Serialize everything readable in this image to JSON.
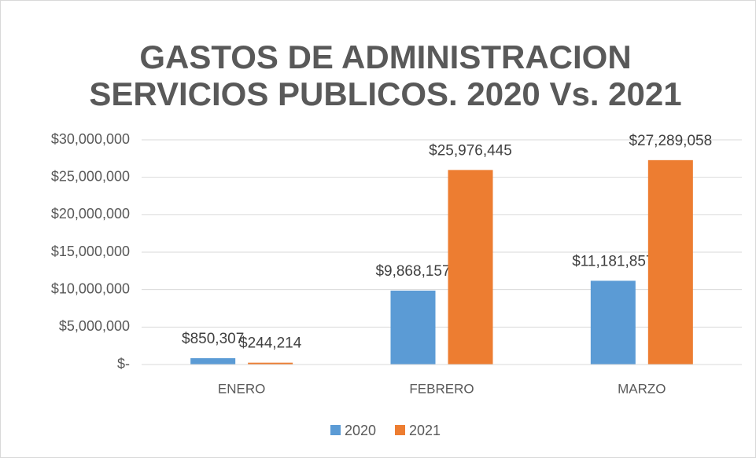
{
  "chart_data": {
    "type": "bar",
    "title": [
      "GASTOS DE ADMINISTRACION",
      "SERVICIOS PUBLICOS. 2020 Vs. 2021"
    ],
    "categories": [
      "ENERO",
      "FEBRERO",
      "MARZO"
    ],
    "series": [
      {
        "name": "2020",
        "color": "#5b9bd5",
        "values": [
          850307,
          9868157,
          11181857
        ],
        "value_labels": [
          "$850,307",
          "$9,868,157",
          "$11,181,857"
        ]
      },
      {
        "name": "2021",
        "color": "#ed7d31",
        "values": [
          244214,
          25976445,
          27289058
        ],
        "value_labels": [
          "$244,214",
          "$25,976,445",
          "$27,289,058"
        ]
      }
    ],
    "ylim": [
      0,
      30000000
    ],
    "yticks": [
      {
        "value": 0,
        "label": "$-"
      },
      {
        "value": 5000000,
        "label": "$5,000,000"
      },
      {
        "value": 10000000,
        "label": "$10,000,000"
      },
      {
        "value": 15000000,
        "label": "$15,000,000"
      },
      {
        "value": 20000000,
        "label": "$20,000,000"
      },
      {
        "value": 25000000,
        "label": "$25,000,000"
      },
      {
        "value": 30000000,
        "label": "$30,000,000"
      }
    ],
    "grid": true,
    "legend": "bottom"
  }
}
